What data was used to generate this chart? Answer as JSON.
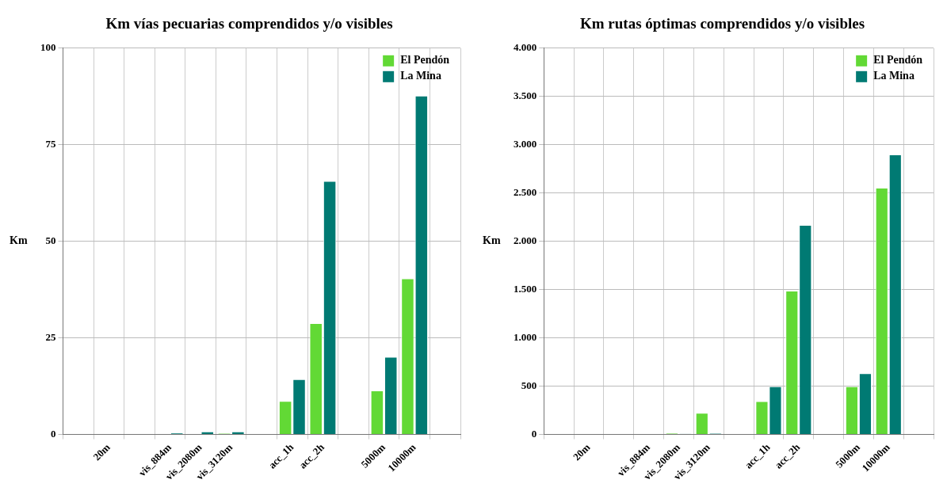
{
  "chart_data": [
    {
      "type": "bar",
      "title": "Km vías pecuarias comprendidos y/o visibles",
      "ylabel": "Km",
      "categories": [
        null,
        "20m",
        null,
        "vis_884m",
        "vis_2080m",
        "vis_3120m",
        null,
        "acc_1h",
        "acc_2h",
        null,
        "5000m",
        "10000m",
        null
      ],
      "series": [
        {
          "name": "El Pendón",
          "color": "#62d935",
          "values": [
            null,
            0,
            null,
            0,
            0,
            0.3,
            null,
            8.7,
            28.8,
            null,
            11.4,
            40.4,
            null
          ]
        },
        {
          "name": "La Mina",
          "color": "#007a73",
          "values": [
            null,
            0,
            null,
            0.5,
            0.8,
            0.8,
            null,
            14.3,
            65.6,
            null,
            20.1,
            87.7,
            null
          ]
        }
      ],
      "ylim": [
        0,
        100
      ],
      "yticks": [
        0,
        25,
        50,
        75,
        100
      ],
      "grid": true,
      "legend": "top right"
    },
    {
      "type": "bar",
      "title": "Km rutas óptimas comprendidos y/o visibles",
      "ylabel": "Km",
      "categories": [
        null,
        "20m",
        null,
        "vis_884m",
        "vis_2080m",
        "vis_3120m",
        null,
        "acc_1h",
        "acc_2h",
        null,
        "5000m",
        "10000m",
        null
      ],
      "series": [
        {
          "name": "El Pendón",
          "color": "#62d935",
          "values": [
            null,
            0,
            null,
            0,
            15,
            225,
            null,
            345,
            1490,
            null,
            500,
            2555,
            null
          ]
        },
        {
          "name": "La Mina",
          "color": "#007a73",
          "values": [
            null,
            0,
            null,
            0,
            8,
            12,
            null,
            500,
            2170,
            null,
            635,
            2900,
            null
          ]
        }
      ],
      "ylim": [
        0,
        4000
      ],
      "yticks": [
        0,
        500,
        {
          "value": 1000,
          "label": "1.000"
        },
        {
          "value": 1500,
          "label": "1.500"
        },
        {
          "value": 2000,
          "label": "2.000"
        },
        {
          "value": 2500,
          "label": "2.500"
        },
        {
          "value": 3000,
          "label": "3.000"
        },
        {
          "value": 3500,
          "label": "3.500"
        },
        {
          "value": 4000,
          "label": "4.000"
        }
      ],
      "grid": true,
      "legend": "top right"
    }
  ]
}
